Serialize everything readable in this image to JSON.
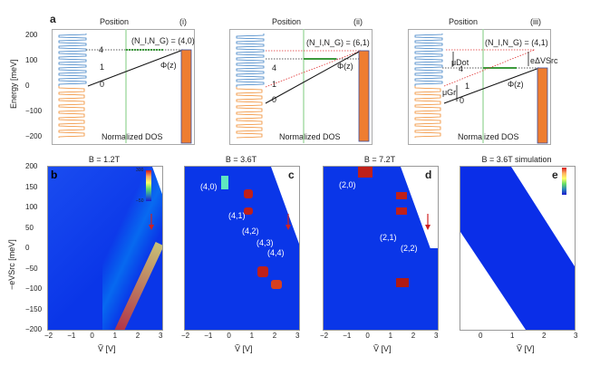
{
  "figure_letter_a": "a",
  "top_panels": [
    {
      "id": "i",
      "roman": "(i)",
      "xlabel_top": "Position",
      "xlabel_bottom": "Normalized DOS",
      "state_label": "(N_I,N_G) = (4,0)",
      "phi": "Φ(z)",
      "levels": [
        "4",
        "1",
        "0"
      ]
    },
    {
      "id": "ii",
      "roman": "(ii)",
      "xlabel_top": "Position",
      "xlabel_bottom": "Normalized DOS",
      "state_label": "(N_I,N_G) = (6,1)",
      "phi": "Φ(z)",
      "levels": [
        "4",
        "1",
        "0"
      ]
    },
    {
      "id": "iii",
      "roman": "(iii)",
      "xlabel_top": "Position",
      "xlabel_bottom": "Normalized DOS",
      "state_label": "(N_I,N_G) = (4,1)",
      "phi": "Φ(z)",
      "levels": [
        "4",
        "1",
        "0"
      ],
      "mu_dot": "μDot",
      "mu_gr": "μGr",
      "e_delta_v": "eΔVSrc"
    }
  ],
  "top_ylabel": "Energy [meV]",
  "top_yticks": [
    "200",
    "100",
    "0",
    "−100",
    "−200"
  ],
  "bottom_ylabel": "−eVSrc [meV]",
  "bottom_xlabel": "Ṽ [V]",
  "bottom_yticks": [
    "200",
    "150",
    "100",
    "50",
    "0",
    "−50",
    "−100",
    "−150",
    "−200"
  ],
  "bottom_panels": [
    {
      "letter": "b",
      "title": "B = 1.2T",
      "xticks": [
        "−2",
        "−1",
        "0",
        "1",
        "2",
        "3"
      ],
      "colorbar": {
        "max": "300",
        "min": "−50",
        "label": "dI/dV"
      }
    },
    {
      "letter": "c",
      "title": "B = 3.6T",
      "xticks": [
        "−2",
        "−1",
        "0",
        "1",
        "2",
        "3"
      ],
      "annotations": [
        "(4,0)",
        "(4,1)",
        "(4,2)",
        "(4,3)",
        "(4,4)"
      ]
    },
    {
      "letter": "d",
      "title": "B = 7.2T",
      "xticks": [
        "−2",
        "−1",
        "0",
        "1",
        "2",
        "3"
      ],
      "annotations": [
        "(2,0)",
        "(2,1)",
        "(2,2)"
      ]
    },
    {
      "letter": "e",
      "title": "B = 3.6T simulation",
      "xticks": [
        "0",
        "1",
        "2",
        "3"
      ],
      "colorbar": {
        "label": "dI/dV"
      }
    }
  ],
  "colors": {
    "blue": "#3b7fc4",
    "orange": "#f08a2c",
    "bar": "#ee7d31",
    "green": "#3c9a3c",
    "light_green": "#a8dca8",
    "red_dot": "#e03030",
    "heat_bg": "#0a36e8"
  },
  "chart_data": [
    {
      "type": "line",
      "title": "(i) Position / Normalized DOS",
      "ylabel": "Energy [meV]",
      "ylim": [
        -200,
        200
      ],
      "annotations": [
        "(N_I,N_G) = (4,0)",
        "Φ(z)",
        "4",
        "1",
        "0"
      ]
    },
    {
      "type": "line",
      "title": "(ii) Position / Normalized DOS",
      "ylabel": "Energy [meV]",
      "ylim": [
        -200,
        200
      ],
      "annotations": [
        "(N_I,N_G) = (6,1)",
        "Φ(z)",
        "4",
        "1",
        "0"
      ]
    },
    {
      "type": "line",
      "title": "(iii) Position / Normalized DOS",
      "ylabel": "Energy [meV]",
      "ylim": [
        -200,
        200
      ],
      "annotations": [
        "(N_I,N_G) = (4,1)",
        "Φ(z)",
        "μDot",
        "μGr",
        "eΔVSrc",
        "4",
        "1",
        "0"
      ]
    },
    {
      "type": "heatmap",
      "title": "B = 1.2T",
      "xlabel": "Ṽ [V]",
      "ylabel": "−eVSrc [meV]",
      "xlim": [
        -2,
        3
      ],
      "ylim": [
        -200,
        200
      ],
      "colorbar_range": [
        -50,
        300
      ]
    },
    {
      "type": "heatmap",
      "title": "B = 3.6T",
      "xlabel": "Ṽ [V]",
      "ylabel": "−eVSrc [meV]",
      "xlim": [
        -2,
        3
      ],
      "ylim": [
        -200,
        200
      ],
      "annotations": [
        "(4,0)",
        "(4,1)",
        "(4,2)",
        "(4,3)",
        "(4,4)"
      ]
    },
    {
      "type": "heatmap",
      "title": "B = 7.2T",
      "xlabel": "Ṽ [V]",
      "ylabel": "−eVSrc [meV]",
      "xlim": [
        -2,
        3
      ],
      "ylim": [
        -200,
        200
      ],
      "annotations": [
        "(2,0)",
        "(2,1)",
        "(2,2)"
      ]
    },
    {
      "type": "heatmap",
      "title": "B = 3.6T simulation",
      "xlabel": "Ṽ [V]",
      "ylabel": "−eVSrc [meV]",
      "xlim": [
        -0.6,
        3
      ],
      "ylim": [
        -200,
        200
      ]
    }
  ]
}
